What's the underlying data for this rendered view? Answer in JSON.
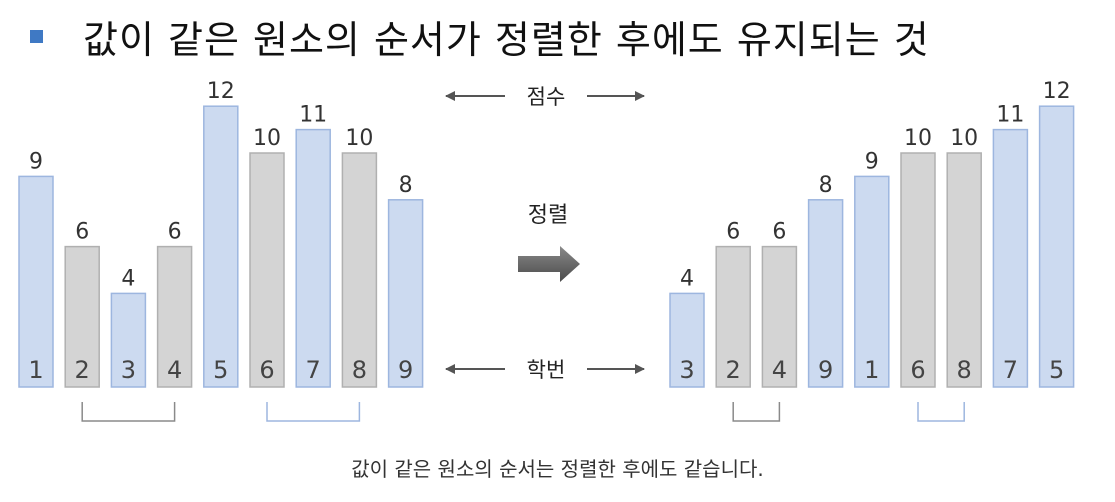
{
  "title": "값이 같은 원소의 순서가 정렬한 후에도 유지되는 것",
  "labels": {
    "score": "점수",
    "sort": "정렬",
    "student_id": "학번"
  },
  "caption": "값이 같은 원소의 순서는 정렬한 후에도 같습니다.",
  "colors": {
    "blue_bar": "#ccdaf0",
    "blue_border": "#9db6df",
    "gray_bar": "#d4d4d4",
    "gray_border": "#b0b0b0",
    "accent": "#3f79c4"
  },
  "before": [
    {
      "id": "1",
      "score": 9,
      "color": "blue"
    },
    {
      "id": "2",
      "score": 6,
      "color": "gray"
    },
    {
      "id": "3",
      "score": 4,
      "color": "blue"
    },
    {
      "id": "4",
      "score": 6,
      "color": "gray"
    },
    {
      "id": "5",
      "score": 12,
      "color": "blue"
    },
    {
      "id": "6",
      "score": 10,
      "color": "gray"
    },
    {
      "id": "7",
      "score": 11,
      "color": "blue"
    },
    {
      "id": "8",
      "score": 10,
      "color": "gray"
    },
    {
      "id": "9",
      "score": 8,
      "color": "blue"
    }
  ],
  "after": [
    {
      "id": "3",
      "score": 4,
      "color": "blue"
    },
    {
      "id": "2",
      "score": 6,
      "color": "gray"
    },
    {
      "id": "4",
      "score": 6,
      "color": "gray"
    },
    {
      "id": "9",
      "score": 8,
      "color": "blue"
    },
    {
      "id": "1",
      "score": 9,
      "color": "blue"
    },
    {
      "id": "6",
      "score": 10,
      "color": "gray"
    },
    {
      "id": "8",
      "score": 10,
      "color": "gray"
    },
    {
      "id": "7",
      "score": 11,
      "color": "blue"
    },
    {
      "id": "5",
      "score": 12,
      "color": "blue"
    }
  ],
  "brackets": {
    "before": [
      {
        "from": 1,
        "to": 3,
        "color": "gray"
      },
      {
        "from": 5,
        "to": 7,
        "color": "blue"
      }
    ],
    "after": [
      {
        "from": 1,
        "to": 2,
        "color": "gray"
      },
      {
        "from": 5,
        "to": 6,
        "color": "blue"
      }
    ]
  }
}
